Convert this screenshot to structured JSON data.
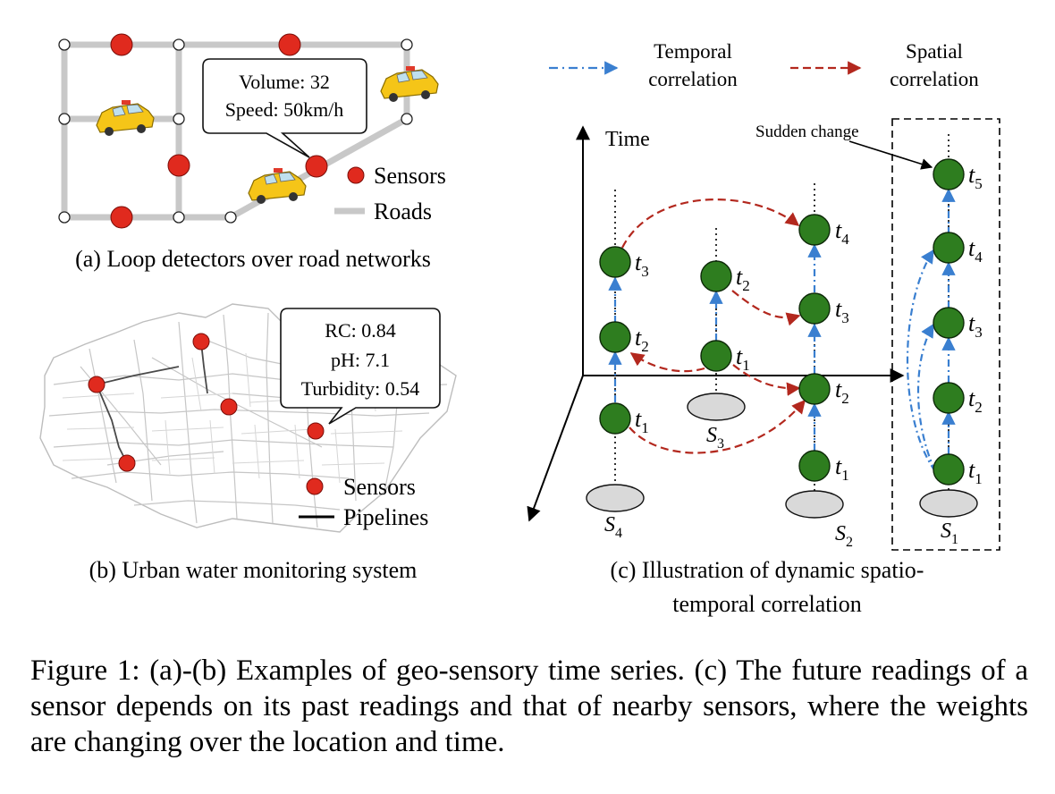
{
  "panel_a": {
    "tooltip_line1": "Volume: 32",
    "tooltip_line2": "Speed: 50km/h",
    "legend_sensors": "Sensors",
    "legend_roads": "Roads",
    "caption": "(a) Loop detectors over road networks",
    "colors": {
      "road": "#c8c8c8",
      "sensor": "#e02a1e",
      "taxi": "#f5c518"
    },
    "icons": [
      "taxi-icon"
    ]
  },
  "panel_b": {
    "tooltip_line1": "RC: 0.84",
    "tooltip_line2": "pH: 7.1",
    "tooltip_line3": "Turbidity: 0.54",
    "legend_sensors": "Sensors",
    "legend_pipelines": "Pipelines",
    "caption": "(b) Urban water monitoring system",
    "colors": {
      "map": "#bdbdbd",
      "sensor": "#e02a1e"
    }
  },
  "panel_c": {
    "legend_temporal_1": "Temporal",
    "legend_temporal_2": "correlation",
    "legend_spatial_1": "Spatial",
    "legend_spatial_2": "correlation",
    "axis_time": "Time",
    "sudden_change": "Sudden change",
    "t": "t",
    "sub1": "1",
    "sub2": "2",
    "sub3": "3",
    "sub4": "4",
    "sub5": "5",
    "s": "S",
    "caption_line1": "(c) Illustration of dynamic spatio-",
    "caption_line2": "temporal correlation",
    "colors": {
      "node": "#2e7d1f",
      "temporal": "#3a7fd0",
      "spatial": "#b3281e",
      "base": "#d9d9d9"
    }
  },
  "figure_caption": "Figure 1: (a)-(b) Examples of geo-sensory time series. (c) The future readings of a sensor depends on its past readings and that of nearby sensors, where the weights are changing over the location and time."
}
